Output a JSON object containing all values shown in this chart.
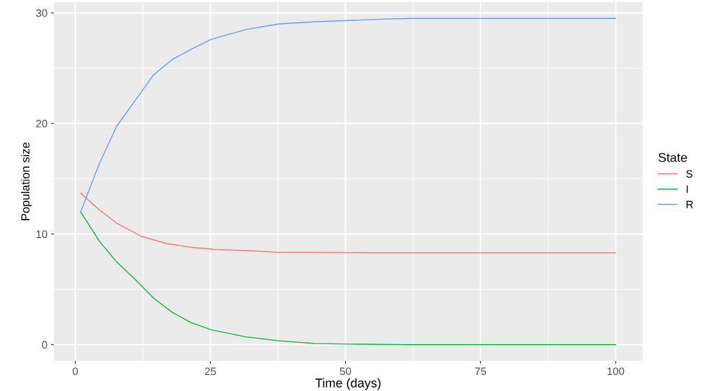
{
  "chart_data": {
    "type": "line",
    "xlabel": "Time (days)",
    "ylabel": "Population size",
    "legend_title": "State",
    "legend": "right",
    "grid": true,
    "xlim": [
      -3.95,
      104.95
    ],
    "ylim": [
      -1.475,
      30.975
    ],
    "xticks": [
      0,
      25,
      50,
      75,
      100
    ],
    "yticks": [
      0,
      10,
      20,
      30
    ],
    "series": [
      {
        "name": "S",
        "color": "#f8766d",
        "x": [
          1,
          4.4,
          7.6,
          12.2,
          16.8,
          21.4,
          26,
          31.6,
          37.6,
          44.5,
          55,
          100
        ],
        "values": [
          13.7,
          12.2,
          11.0,
          9.8,
          9.15,
          8.8,
          8.6,
          8.5,
          8.35,
          8.35,
          8.3,
          8.3
        ]
      },
      {
        "name": "I",
        "color": "#00ba38",
        "x": [
          1,
          4.4,
          7.6,
          11.1,
          14.5,
          18,
          21.4,
          25.1,
          31.6,
          37.6,
          44.5,
          50,
          62,
          100
        ],
        "values": [
          12.0,
          9.4,
          7.5,
          5.9,
          4.2,
          2.9,
          2.0,
          1.35,
          0.7,
          0.35,
          0.1,
          0.05,
          0,
          0
        ]
      },
      {
        "name": "R",
        "color": "#619cff",
        "x": [
          1,
          4.4,
          7.6,
          11.1,
          14.5,
          18,
          21.4,
          25.1,
          31.6,
          37.6,
          44.5,
          50,
          55,
          62,
          100
        ],
        "values": [
          12.0,
          16.3,
          19.7,
          22.1,
          24.4,
          25.8,
          26.7,
          27.6,
          28.5,
          29.0,
          29.2,
          29.3,
          29.4,
          29.5,
          29.5
        ]
      }
    ]
  }
}
